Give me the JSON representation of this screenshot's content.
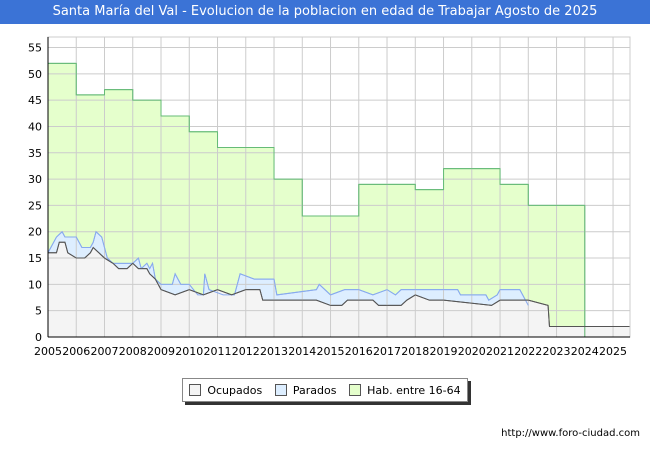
{
  "title": "Santa María del Val - Evolucion de la poblacion en edad de Trabajar Agosto de 2025",
  "footer_url": "http://www.foro-ciudad.com",
  "chart_data": {
    "type": "area",
    "title": "Santa María del Val - Evolucion de la poblacion en edad de Trabajar Agosto de 2025",
    "xlim": [
      2005,
      2025.6
    ],
    "ylim": [
      0,
      57
    ],
    "xticks": [
      2005,
      2006,
      2007,
      2008,
      2009,
      2010,
      2011,
      2012,
      2013,
      2014,
      2015,
      2016,
      2017,
      2018,
      2019,
      2020,
      2021,
      2022,
      2023,
      2024,
      2025
    ],
    "yticks": [
      0,
      5,
      10,
      15,
      20,
      25,
      30,
      35,
      40,
      45,
      50,
      55
    ],
    "grid": true,
    "legend_position": "bottom",
    "colors": {
      "ocupados": "#f4f4f4",
      "ocupados_line": "#555555",
      "parados": "#ddeeff",
      "parados_line": "#88aaee",
      "hab": "#e5ffcc",
      "hab_line": "#66bb77"
    },
    "series": [
      {
        "name": "Hab. entre 16-64",
        "x": [
          2005,
          2006,
          2006,
          2007,
          2007,
          2008,
          2008,
          2009,
          2009,
          2010,
          2010,
          2011,
          2011,
          2013,
          2013,
          2014,
          2014,
          2016,
          2016,
          2018,
          2018,
          2019,
          2019,
          2021,
          2021,
          2022,
          2022,
          2024,
          2024
        ],
        "values": [
          52,
          52,
          46,
          46,
          47,
          47,
          45,
          45,
          42,
          42,
          39,
          39,
          36,
          36,
          30,
          30,
          23,
          23,
          29,
          29,
          28,
          28,
          32,
          32,
          29,
          29,
          25,
          25,
          0
        ]
      },
      {
        "name": "Parados",
        "x": [
          2005,
          2005.3,
          2005.5,
          2005.6,
          2006,
          2006.2,
          2006.5,
          2006.6,
          2006.7,
          2006.9,
          2007.1,
          2007.3,
          2008,
          2008.2,
          2008.3,
          2008.5,
          2008.6,
          2008.7,
          2008.8,
          2009,
          2009.4,
          2009.5,
          2009.7,
          2010,
          2010.3,
          2010.5,
          2010.55,
          2010.7,
          2011.2,
          2011.6,
          2011.8,
          2012.3,
          2013,
          2013.1,
          2014.5,
          2014.6,
          2015,
          2015.5,
          2016,
          2016.5,
          2017,
          2017.3,
          2017.5,
          2018,
          2019.5,
          2019.6,
          2020.5,
          2020.6,
          2020.9,
          2021,
          2021.7,
          2022
        ],
        "total": [
          16,
          19,
          20,
          19,
          19,
          17,
          17,
          18,
          20,
          19,
          15,
          14,
          14,
          15,
          13,
          14,
          13,
          14,
          11,
          10,
          10,
          12,
          10,
          10,
          8,
          8,
          12,
          9,
          8,
          8,
          12,
          11,
          11,
          8,
          9,
          10,
          8,
          9,
          9,
          8,
          9,
          8,
          9,
          9,
          9,
          8,
          8,
          7,
          8,
          9,
          9,
          6
        ]
      },
      {
        "name": "Ocupados",
        "x": [
          2005,
          2005.3,
          2005.4,
          2005.6,
          2005.7,
          2006,
          2006.3,
          2006.5,
          2006.6,
          2006.8,
          2007,
          2007.3,
          2007.5,
          2007.8,
          2008,
          2008.2,
          2008.5,
          2008.6,
          2008.8,
          2009,
          2009.5,
          2010,
          2010.5,
          2011,
          2011.5,
          2012,
          2012.5,
          2012.6,
          2014.5,
          2015,
          2015.4,
          2015.6,
          2016.5,
          2016.7,
          2017.5,
          2017.7,
          2018,
          2018.5,
          2019,
          2020.7,
          2021,
          2022,
          2022.7,
          2022.75,
          2025.6
        ],
        "values": [
          16,
          16,
          18,
          18,
          16,
          15,
          15,
          16,
          17,
          16,
          15,
          14,
          13,
          13,
          14,
          13,
          13,
          12,
          11,
          9,
          8,
          9,
          8,
          9,
          8,
          9,
          9,
          7,
          7,
          6,
          6,
          7,
          7,
          6,
          6,
          7,
          8,
          7,
          7,
          6,
          7,
          7,
          6,
          2,
          2
        ]
      }
    ]
  },
  "legend": [
    "Ocupados",
    "Parados",
    "Hab. entre 16-64"
  ]
}
